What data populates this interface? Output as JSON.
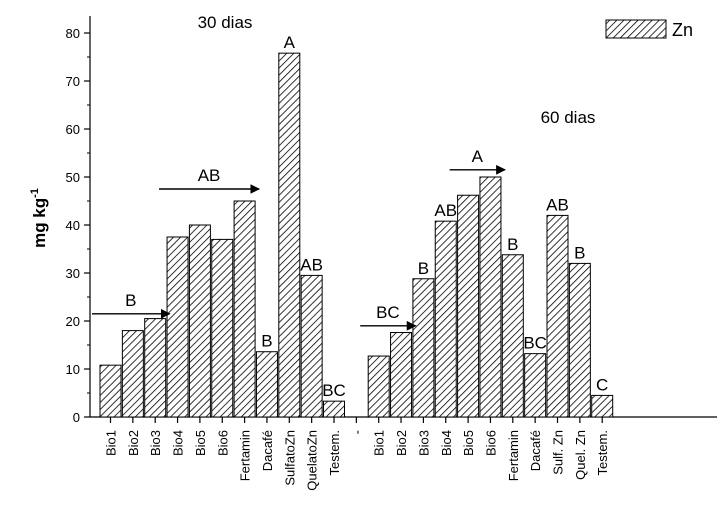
{
  "chart_data": {
    "type": "bar",
    "ylabel": "mg kg",
    "ylabel_superscript": "-1",
    "ylim": [
      0,
      80
    ],
    "yticks": [
      0,
      10,
      20,
      30,
      40,
      50,
      60,
      70,
      80
    ],
    "legend": {
      "label": "Zn",
      "placement": "top-right"
    },
    "pattern": "diagonal-hatch",
    "categories": [
      "Bio1",
      "Bio2",
      "Bio3",
      "Bio4",
      "Bio5",
      "Bio6",
      "Fertamin",
      "Dacafé",
      "SulfatoZn",
      "QuelatoZn",
      "Testem.",
      "-",
      "Bio1",
      "Bio2",
      "Bio3",
      "Bio4",
      "Bio5",
      "Bio6",
      "Fertamin",
      "Dacafé",
      "Sulf. Zn",
      "Quel. Zn",
      "Testem."
    ],
    "values": [
      10.8,
      18.0,
      20.5,
      37.5,
      40.0,
      37.0,
      45.0,
      13.6,
      75.8,
      29.5,
      3.3,
      null,
      12.7,
      17.6,
      28.8,
      40.8,
      46.2,
      50.0,
      33.8,
      13.2,
      42.0,
      32.0,
      4.5
    ],
    "letters": [
      "",
      "",
      "",
      "",
      "",
      "",
      "",
      "B",
      "A",
      "AB",
      "BC",
      "",
      "",
      "",
      "",
      "",
      "",
      "",
      "B",
      "BC",
      "AB",
      "B",
      "C"
    ],
    "group_annotations": [
      {
        "title": "30 dias",
        "letter": "B",
        "arrow_from": 0,
        "arrow_to": 2,
        "arrow_y": 21.5
      },
      {
        "letter": "AB",
        "arrow_from": 3,
        "arrow_to": 6,
        "arrow_y": 47.5
      },
      {
        "title": "60 dias",
        "letter": "BC",
        "arrow_from": 12,
        "arrow_to": 13,
        "arrow_y": 19.0
      },
      {
        "letter": "B",
        "arrow_from": 14,
        "arrow_to": 14
      },
      {
        "letter": "AB",
        "arrow_from": 15,
        "arrow_to": 15
      },
      {
        "letter": "A",
        "arrow_from": 16,
        "arrow_to": 17,
        "arrow_y": 51.5
      }
    ]
  }
}
